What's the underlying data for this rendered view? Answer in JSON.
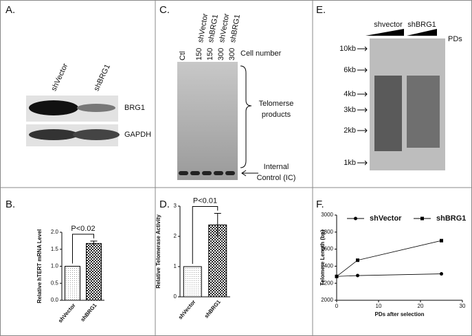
{
  "panel_labels": [
    "A.",
    "B.",
    "C.",
    "D.",
    "E.",
    "F."
  ],
  "blot_a": {
    "lanes": [
      "shVector",
      "shBRG1"
    ],
    "bands": [
      "BRG1",
      "GAPDH"
    ]
  },
  "blot_c": {
    "groups": [
      "shVector",
      "shBRG1",
      "shVector",
      "shBRG1"
    ],
    "control": "Ctl",
    "cell_counts": [
      "150",
      "150",
      "300",
      "300"
    ],
    "cell_number_label": "Cell number",
    "products": [
      "Telomerse",
      "products"
    ],
    "internal_control": [
      "Internal",
      "Control (IC)"
    ]
  },
  "blot_e": {
    "groups": [
      "shvector",
      "shBRG1"
    ],
    "pds": "PDs",
    "markers": [
      "10kb",
      "6kb",
      "4kb",
      "3kb",
      "2kb",
      "1kb"
    ]
  },
  "chart_data": [
    {
      "type": "bar",
      "ylabel": "Relative hTERT mRNA Level",
      "categories": [
        "shVector",
        "shBRG1"
      ],
      "values": [
        1.0,
        1.67
      ],
      "errors": [
        null,
        0.07
      ],
      "ylim": [
        0,
        2.0
      ],
      "yticks": [
        {
          "value": 0,
          "label": "0.0"
        },
        {
          "value": 0.5,
          "label": "0.5"
        },
        {
          "value": 1,
          "label": "1.0"
        },
        {
          "value": 1.5,
          "label": "1.5"
        },
        {
          "value": 2,
          "label": "2.0"
        }
      ],
      "annotation": "P<0.02"
    },
    {
      "type": "bar",
      "ylabel": "Relative Telomerase Activity",
      "categories": [
        "shVector",
        "shBRG1"
      ],
      "values": [
        1.0,
        2.38
      ],
      "errors": [
        null,
        0.38
      ],
      "ylim": [
        0,
        3
      ],
      "yticks": [
        0,
        1,
        2,
        3
      ],
      "annotation": "P<0.01"
    },
    {
      "type": "line",
      "xlabel": "PDs after selection",
      "ylabel": "Telomere Length (bp)",
      "x": [
        0,
        5,
        25
      ],
      "series": [
        {
          "name": "shVector",
          "marker": "circle",
          "color": "#000000",
          "values": [
            2280,
            2290,
            2310
          ]
        },
        {
          "name": "shBRG1",
          "marker": "square",
          "color": "#000000",
          "values": [
            2280,
            2470,
            2700
          ]
        }
      ],
      "xlim": [
        0,
        30
      ],
      "xticks": [
        0,
        10,
        20,
        30
      ],
      "ylim": [
        2000,
        3000
      ],
      "yticks": [
        2000,
        2200,
        2400,
        2600,
        2800,
        3000
      ]
    }
  ]
}
